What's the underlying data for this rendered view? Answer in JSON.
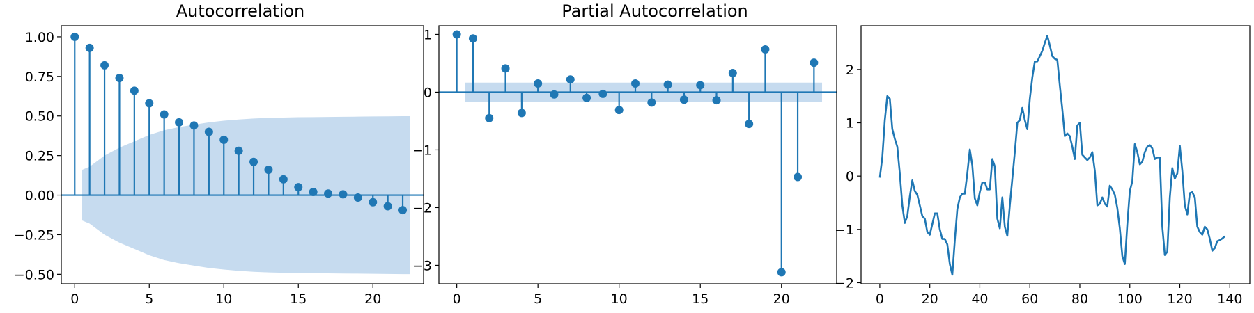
{
  "colors": {
    "series": "#1f77b4",
    "confidence_band": "#c6dbef",
    "axes": "#000000",
    "background": "#ffffff"
  },
  "chart_data": [
    {
      "type": "stem",
      "title": "Autocorrelation",
      "xlabel": "",
      "ylabel": "",
      "xlim": [
        -0.9,
        23.4
      ],
      "ylim": [
        -0.56,
        1.07
      ],
      "x_ticks": [
        0,
        5,
        10,
        15,
        20
      ],
      "x_tick_labels": [
        "0",
        "5",
        "10",
        "15",
        "20"
      ],
      "y_ticks": [
        1.0,
        0.75,
        0.5,
        0.25,
        0.0,
        -0.25,
        -0.5
      ],
      "y_tick_labels": [
        "1.00",
        "0.75",
        "0.50",
        "0.25",
        "0.00",
        "−0.25",
        "−0.50"
      ],
      "lags": [
        0,
        1,
        2,
        3,
        4,
        5,
        6,
        7,
        8,
        9,
        10,
        11,
        12,
        13,
        14,
        15,
        16,
        17,
        18,
        19,
        20,
        21,
        22
      ],
      "values": [
        1.0,
        0.93,
        0.82,
        0.74,
        0.66,
        0.58,
        0.51,
        0.46,
        0.44,
        0.4,
        0.35,
        0.28,
        0.21,
        0.16,
        0.1,
        0.05,
        0.02,
        0.01,
        0.005,
        -0.015,
        -0.045,
        -0.07,
        -0.095
      ],
      "confidence_band": {
        "x": [
          0.5,
          1,
          2,
          3,
          4,
          5,
          6,
          7,
          8,
          9,
          10,
          11,
          12,
          13,
          14,
          15,
          16,
          17,
          18,
          19,
          20,
          21,
          22,
          22.5
        ],
        "upper": [
          0.16,
          0.18,
          0.25,
          0.3,
          0.34,
          0.38,
          0.41,
          0.43,
          0.445,
          0.46,
          0.47,
          0.478,
          0.484,
          0.488,
          0.49,
          0.492,
          0.493,
          0.494,
          0.495,
          0.496,
          0.497,
          0.498,
          0.499,
          0.499
        ]
      },
      "grid": false
    },
    {
      "type": "stem",
      "title": "Partial Autocorrelation",
      "xlabel": "",
      "ylabel": "",
      "xlim": [
        -1.1,
        23.4
      ],
      "ylim": [
        -3.32,
        1.15
      ],
      "x_ticks": [
        0,
        5,
        10,
        15,
        20
      ],
      "x_tick_labels": [
        "0",
        "5",
        "10",
        "15",
        "20"
      ],
      "y_ticks": [
        1,
        0,
        -1,
        -2,
        -3
      ],
      "y_tick_labels": [
        "1",
        "0",
        "−1",
        "−2",
        "−3"
      ],
      "lags": [
        0,
        1,
        2,
        3,
        4,
        5,
        6,
        7,
        8,
        9,
        10,
        11,
        12,
        13,
        14,
        15,
        16,
        17,
        18,
        19,
        20,
        21,
        22
      ],
      "values": [
        1.0,
        0.93,
        -0.45,
        0.41,
        -0.36,
        0.15,
        -0.04,
        0.22,
        -0.1,
        -0.03,
        -0.31,
        0.15,
        -0.18,
        0.13,
        -0.13,
        0.12,
        -0.14,
        0.33,
        -0.55,
        0.74,
        -3.12,
        -1.47,
        0.51
      ],
      "confidence_band": {
        "x": [
          0.5,
          22.5
        ],
        "upper": [
          0.165,
          0.165
        ]
      },
      "grid": false
    },
    {
      "type": "line",
      "title": "",
      "xlabel": "",
      "ylabel": "",
      "xlim": [
        -7.5,
        148
      ],
      "ylim": [
        -2.02,
        2.82
      ],
      "x_ticks": [
        0,
        20,
        40,
        60,
        80,
        100,
        120,
        140
      ],
      "x_tick_labels": [
        "0",
        "20",
        "40",
        "60",
        "80",
        "100",
        "120",
        "140"
      ],
      "y_ticks": [
        2,
        1,
        0,
        -1,
        -2
      ],
      "y_tick_labels": [
        "2",
        "1",
        "0",
        "−1",
        "−2"
      ],
      "series": [
        {
          "values": [
            -0.03,
            0.35,
            1.05,
            1.5,
            1.45,
            0.88,
            0.7,
            0.55,
            0.05,
            -0.55,
            -0.88,
            -0.75,
            -0.38,
            -0.08,
            -0.28,
            -0.35,
            -0.55,
            -0.75,
            -0.8,
            -1.05,
            -1.1,
            -0.9,
            -0.7,
            -0.7,
            -1.0,
            -1.18,
            -1.18,
            -1.28,
            -1.65,
            -1.85,
            -1.2,
            -0.62,
            -0.4,
            -0.33,
            -0.33,
            0.05,
            0.5,
            0.2,
            -0.42,
            -0.55,
            -0.3,
            -0.12,
            -0.12,
            -0.25,
            -0.25,
            0.32,
            0.18,
            -0.8,
            -0.98,
            -0.4,
            -0.95,
            -1.12,
            -0.55,
            -0.05,
            0.45,
            1.0,
            1.05,
            1.28,
            1.05,
            0.88,
            1.45,
            1.85,
            2.15,
            2.15,
            2.25,
            2.35,
            2.5,
            2.63,
            2.45,
            2.25,
            2.2,
            2.18,
            1.7,
            1.25,
            0.75,
            0.8,
            0.75,
            0.55,
            0.32,
            0.95,
            1.0,
            0.4,
            0.35,
            0.3,
            0.35,
            0.45,
            0.1,
            -0.55,
            -0.52,
            -0.4,
            -0.52,
            -0.57,
            -0.18,
            -0.25,
            -0.35,
            -0.6,
            -0.98,
            -1.5,
            -1.65,
            -0.9,
            -0.28,
            -0.1,
            0.6,
            0.45,
            0.22,
            0.27,
            0.45,
            0.55,
            0.58,
            0.52,
            0.32,
            0.35,
            0.35,
            -0.95,
            -1.48,
            -1.42,
            -0.4,
            0.15,
            -0.05,
            0.05,
            0.57,
            0.1,
            -0.55,
            -0.72,
            -0.32,
            -0.3,
            -0.4,
            -0.95,
            -1.05,
            -1.1,
            -0.95,
            -1.0,
            -1.18,
            -1.4,
            -1.35,
            -1.22,
            -1.2,
            -1.17,
            -1.13
          ]
        }
      ],
      "grid": false
    }
  ]
}
